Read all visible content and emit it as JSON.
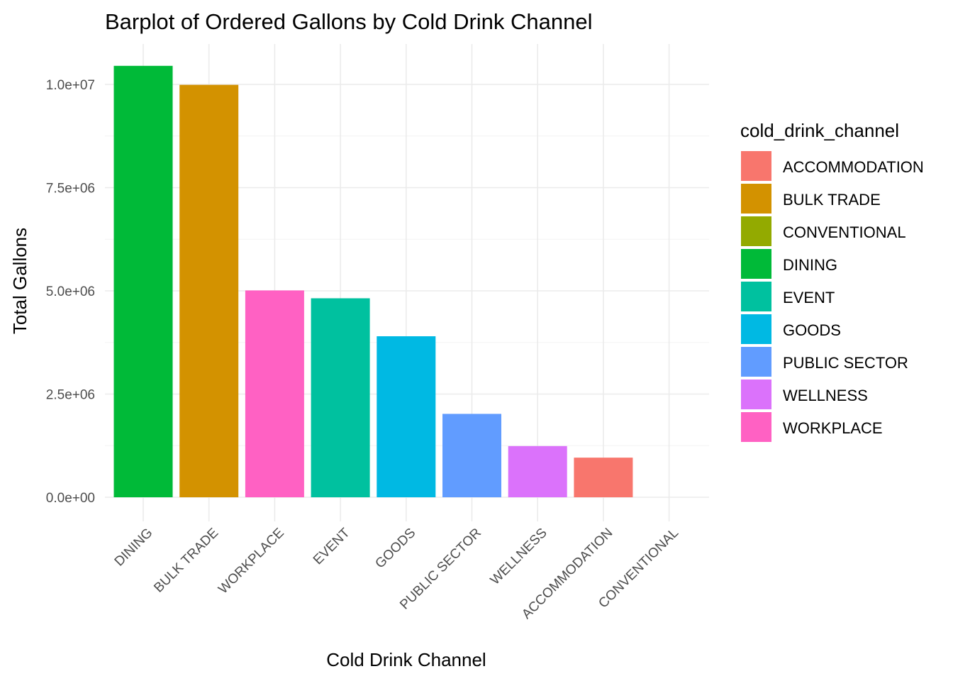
{
  "chart_data": {
    "type": "bar",
    "title": "Barplot of Ordered Gallons by Cold Drink Channel",
    "xlabel": "Cold Drink Channel",
    "ylabel": "Total Gallons",
    "categories": [
      "DINING",
      "BULK TRADE",
      "WORKPLACE",
      "EVENT",
      "GOODS",
      "PUBLIC SECTOR",
      "WELLNESS",
      "ACCOMMODATION",
      "CONVENTIONAL"
    ],
    "values": [
      10450000,
      9990000,
      5010000,
      4820000,
      3900000,
      2020000,
      1240000,
      960000,
      0
    ],
    "colors": [
      "#00BA38",
      "#D39200",
      "#FF61C3",
      "#00C19F",
      "#00B9E3",
      "#619CFF",
      "#DB72FB",
      "#F8766D",
      "#93AA00"
    ],
    "ylim": [
      0,
      10450000
    ],
    "yticks": [
      0,
      2500000,
      5000000,
      7500000,
      10000000
    ],
    "ytick_labels": [
      "0.0e+00",
      "2.5e+06",
      "5.0e+06",
      "7.5e+06",
      "1.0e+07"
    ],
    "grid": true,
    "legend": {
      "title": "cold_drink_channel",
      "position": "right",
      "entries": [
        {
          "label": "ACCOMMODATION",
          "color": "#F8766D"
        },
        {
          "label": "BULK TRADE",
          "color": "#D39200"
        },
        {
          "label": "CONVENTIONAL",
          "color": "#93AA00"
        },
        {
          "label": "DINING",
          "color": "#00BA38"
        },
        {
          "label": "EVENT",
          "color": "#00C19F"
        },
        {
          "label": "GOODS",
          "color": "#00B9E3"
        },
        {
          "label": "PUBLIC SECTOR",
          "color": "#619CFF"
        },
        {
          "label": "WELLNESS",
          "color": "#DB72FB"
        },
        {
          "label": "WORKPLACE",
          "color": "#FF61C3"
        }
      ]
    }
  }
}
